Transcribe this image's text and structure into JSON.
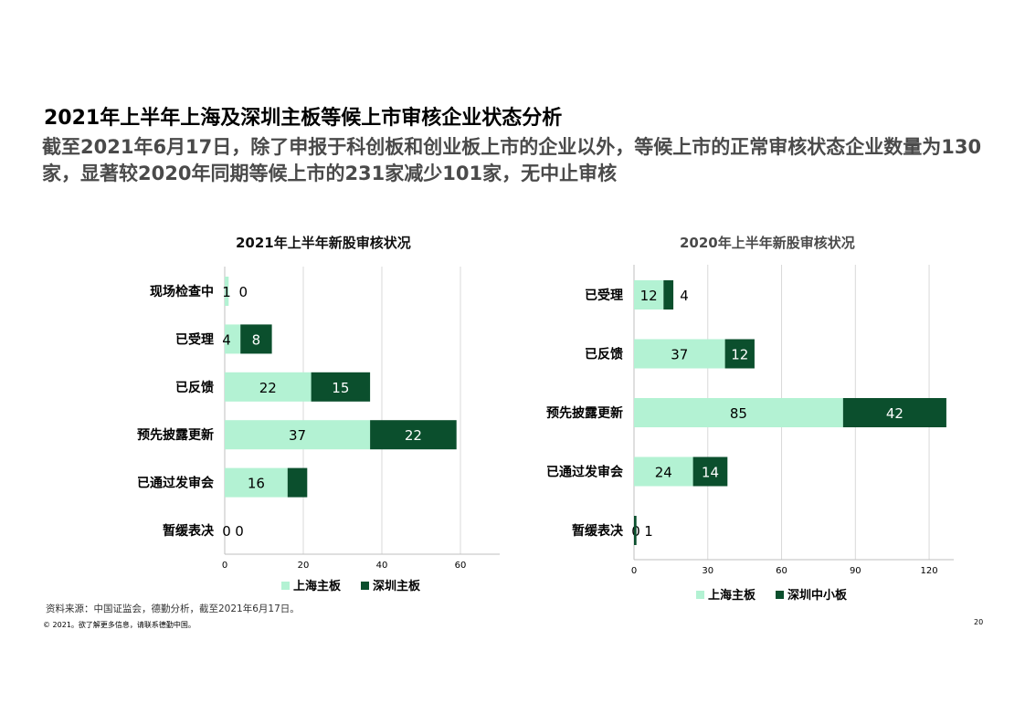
{
  "page": {
    "title": "2021年上半年上海及深圳主板等候上市审核企业状态分析",
    "subtitle": "截至2021年6月17日，除了申报于科创板和创业板上市的企业以外，等候上市的正常审核状态企业数量为130家，显著较2020年同期等候上市的231家减少101家，无中止审核",
    "source": "资料来源：中国证监会，德勤分析，截至2021年6月17日。",
    "copyright": "© 2021。欲了解更多信息，请联系德勤中国。",
    "page_number": "20"
  },
  "colors": {
    "light_green": "#b3f2d3",
    "dark_green": "#0b4f2d"
  },
  "chart_data": [
    {
      "type": "bar",
      "orientation": "horizontal",
      "stacked": true,
      "title": "2021年上半年新股审核状况",
      "categories": [
        "现场检查中",
        "已受理",
        "已反馈",
        "预先披露更新",
        "已通过发审会",
        "暂缓表决"
      ],
      "series": [
        {
          "name": "上海主板",
          "values": [
            1,
            4,
            22,
            37,
            16,
            0
          ],
          "color": "#b3f2d3"
        },
        {
          "name": "深圳主板",
          "values": [
            0,
            8,
            15,
            22,
            5,
            0
          ],
          "color": "#0b4f2d"
        }
      ],
      "xlim": [
        0,
        70
      ],
      "xticks": [
        "0",
        "20",
        "40",
        "60"
      ],
      "grid": true,
      "legend": "bottom"
    },
    {
      "type": "bar",
      "orientation": "horizontal",
      "stacked": true,
      "title": "2020年上半年新股审核状况",
      "categories": [
        "已受理",
        "已反馈",
        "预先披露更新",
        "已通过发审会",
        "暂缓表决"
      ],
      "series": [
        {
          "name": "上海主板",
          "values": [
            12,
            37,
            85,
            24,
            0
          ],
          "color": "#b3f2d3"
        },
        {
          "name": "深圳中小板",
          "values": [
            4,
            12,
            42,
            14,
            1
          ],
          "color": "#0b4f2d"
        }
      ],
      "xlim": [
        0,
        130
      ],
      "xticks": [
        "0",
        "30",
        "60",
        "90",
        "120"
      ],
      "grid": true,
      "legend": "bottom"
    }
  ]
}
